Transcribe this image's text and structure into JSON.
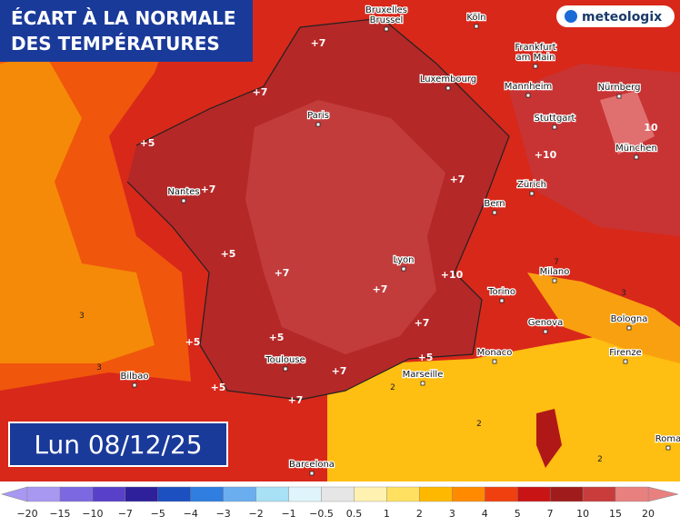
{
  "header": {
    "title": [
      "ÉCART À LA NORMALE",
      "DES TEMPÉRATURES"
    ],
    "date": "Lun 08/12/25",
    "logo": "meteologix"
  },
  "cities": [
    [
      "Bruxelles",
      "Brussel"
    ],
    [
      "Köln"
    ],
    [
      "Frankfurt",
      "am Main"
    ],
    [
      "Luxembourg"
    ],
    [
      "Mannheim"
    ],
    [
      "Nürnberg"
    ],
    [
      "Paris"
    ],
    [
      "Stuttgart"
    ],
    [
      "München"
    ],
    [
      "Nantes"
    ],
    [
      "Zürich"
    ],
    [
      "Bern"
    ],
    [
      "Lyon"
    ],
    [
      "Milano"
    ],
    [
      "Torino"
    ],
    [
      "Genova"
    ],
    [
      "Bologna"
    ],
    [
      "Monaco"
    ],
    [
      "Marseille"
    ],
    [
      "Firenze"
    ],
    [
      "Toulouse"
    ],
    [
      "Bilbao"
    ],
    [
      "Barcelona"
    ],
    [
      "Roma"
    ]
  ],
  "anomalies": [
    "+7",
    "+7",
    "+5",
    "+7",
    "+10",
    "10",
    "+7",
    "+5",
    "+7",
    "+10",
    "+7",
    "+7",
    "+5",
    "+5",
    "+5",
    "+7",
    "+5",
    "+7",
    "3",
    "3",
    "3",
    "7",
    "2",
    "2",
    "2"
  ],
  "legend": {
    "ticks": [
      "−20",
      "−15",
      "−10",
      "−7",
      "−5",
      "−4",
      "−3",
      "−2",
      "−1",
      "−0.5",
      "0.5",
      "1",
      "2",
      "3",
      "4",
      "5",
      "7",
      "10",
      "15",
      "20"
    ],
    "colors": [
      "#a898f2",
      "#7c68e0",
      "#5840c8",
      "#2e1f9a",
      "#1c4fc0",
      "#2f7ee0",
      "#6aaef0",
      "#a8e0f5",
      "#dff4fb",
      "#e6e6e6",
      "#fff1b0",
      "#ffe060",
      "#ffb800",
      "#ff8a00",
      "#f04010",
      "#c81414",
      "#a01c1c",
      "#c83c3c",
      "#e88080"
    ]
  }
}
